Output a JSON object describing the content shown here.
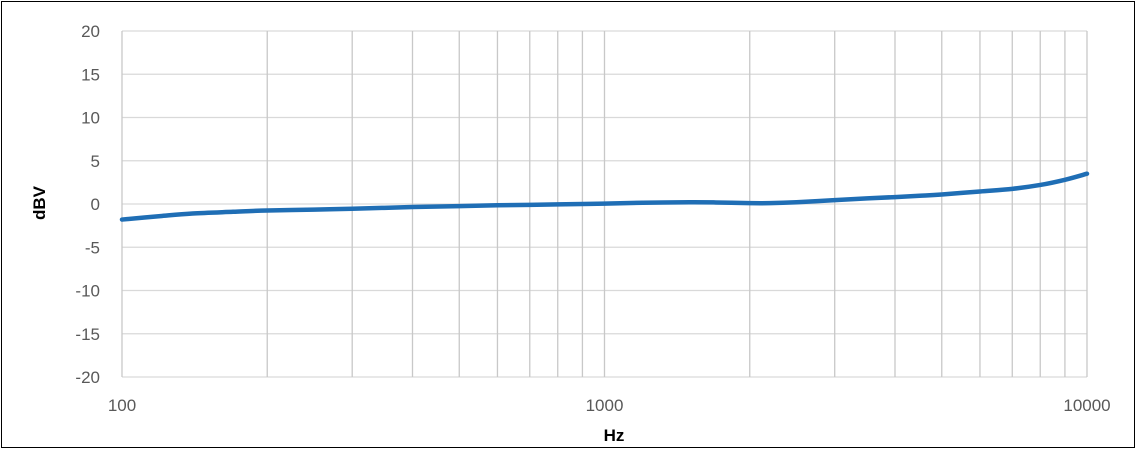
{
  "chart_data": {
    "type": "line",
    "title": "",
    "xlabel": "Hz",
    "ylabel": "dBV",
    "x_scale": "log",
    "xlim": [
      100,
      10000
    ],
    "ylim": [
      -20,
      20
    ],
    "x_ticks": [
      100,
      1000,
      10000
    ],
    "x_tick_labels": [
      "100",
      "1000",
      "10000"
    ],
    "x_minor_gridlines": [
      200,
      300,
      400,
      500,
      600,
      700,
      800,
      900,
      2000,
      3000,
      4000,
      5000,
      6000,
      7000,
      8000,
      9000
    ],
    "y_ticks": [
      20,
      15,
      10,
      5,
      0,
      -5,
      -10,
      -15,
      -20
    ],
    "y_tick_labels": [
      "20",
      "15",
      "10",
      "5",
      "0",
      "-5",
      "-10",
      "-15",
      "-20"
    ],
    "grid": true,
    "legend": "none",
    "series": [
      {
        "color": "#1F6EB5",
        "x": [
          100,
          120,
          140,
          170,
          200,
          250,
          300,
          400,
          500,
          600,
          700,
          800,
          900,
          1000,
          1200,
          1500,
          1700,
          2000,
          2200,
          2500,
          3000,
          3500,
          4000,
          4500,
          5000,
          6000,
          7000,
          8000,
          9000,
          10000
        ],
        "y": [
          -1.8,
          -1.4,
          -1.1,
          -0.9,
          -0.75,
          -0.65,
          -0.55,
          -0.35,
          -0.25,
          -0.15,
          -0.1,
          -0.05,
          0.0,
          0.05,
          0.15,
          0.2,
          0.18,
          0.1,
          0.1,
          0.2,
          0.45,
          0.65,
          0.8,
          0.95,
          1.1,
          1.45,
          1.75,
          2.2,
          2.8,
          3.5
        ]
      }
    ]
  }
}
